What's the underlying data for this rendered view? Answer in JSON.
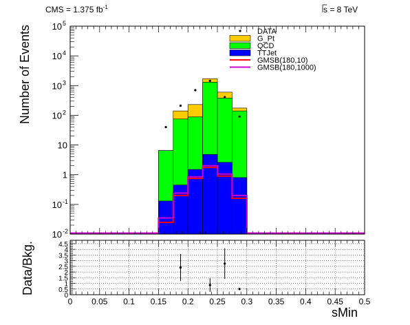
{
  "header": {
    "left_text": "CMS = 1.375 fb",
    "left_sup": "-1",
    "right_text": "s = 8 TeV"
  },
  "chart_data": {
    "type": "bar",
    "x_edges": [
      0,
      0.025,
      0.05,
      0.075,
      0.1,
      0.125,
      0.15,
      0.175,
      0.2,
      0.225,
      0.25,
      0.275,
      0.3,
      0.325,
      0.35,
      0.375,
      0.4,
      0.425,
      0.45,
      0.475,
      0.5
    ],
    "xlim": [
      0,
      0.5
    ],
    "xlabel": "sMin",
    "x_ticks": [
      "0",
      "0.05",
      "0.1",
      "0.15",
      "0.2",
      "0.25",
      "0.3",
      "0.35",
      "0.4",
      "0.45",
      "0.5"
    ],
    "top": {
      "ylabel": "Number of Events",
      "y_scale": "log",
      "ylim": [
        0.01,
        100000
      ],
      "y_ticks": [
        {
          "base": "10",
          "exp": "-2"
        },
        {
          "base": "10",
          "exp": "-1"
        },
        {
          "base": "1",
          "exp": ""
        },
        {
          "base": "10",
          "exp": ""
        },
        {
          "base": "10",
          "exp": "2"
        },
        {
          "base": "10",
          "exp": "3"
        },
        {
          "base": "10",
          "exp": "4"
        },
        {
          "base": "10",
          "exp": "5"
        }
      ],
      "stack_bins": [
        6,
        7,
        8,
        9,
        10,
        11
      ],
      "stack": [
        {
          "name": "G_Pt",
          "color": "#ffcc00",
          "values": [
            6.5,
            140,
            230,
            1700,
            600,
            175
          ]
        },
        {
          "name": "QCD",
          "color": "#00ff00",
          "values": [
            6.5,
            75,
            88,
            1300,
            380,
            140
          ]
        },
        {
          "name": "TTJet",
          "color": "#0000ff",
          "values": [
            0.13,
            0.45,
            1.5,
            4.8,
            2.6,
            0.8
          ]
        }
      ],
      "signals": [
        {
          "name": "GMSB(180,10)",
          "color": "#ff0000",
          "values": [
            0.025,
            0.2,
            0.75,
            1.75,
            0.9,
            0.16
          ]
        },
        {
          "name": "GMSB(180,1000)",
          "color": "#cc00cc",
          "values": [
            0.035,
            0.24,
            0.85,
            2.0,
            1.05,
            0.2
          ]
        }
      ],
      "data": {
        "name": "DATA",
        "x": [
          0.1625,
          0.1875,
          0.2125,
          0.2375,
          0.2625,
          0.2875
        ],
        "y": [
          40,
          210,
          700,
          1450,
          410,
          90
        ]
      },
      "legend_placement": "top-right"
    },
    "bottom": {
      "ylabel": "Data/Bkg.",
      "ylim": [
        0,
        4.8
      ],
      "y_ticks": [
        "0",
        "0.5",
        "1",
        "1.5",
        "2",
        "2.5",
        "3",
        "3.5",
        "4",
        "4.5"
      ],
      "grid": true,
      "points": [
        {
          "x": 0.1875,
          "y": 2.4,
          "err": 1.2
        },
        {
          "x": 0.2375,
          "y": 0.85,
          "err": 0.6
        },
        {
          "x": 0.2625,
          "y": 2.75,
          "err": 1.35
        },
        {
          "x": 0.2875,
          "y": 0.5,
          "err": 0.0
        }
      ]
    }
  }
}
